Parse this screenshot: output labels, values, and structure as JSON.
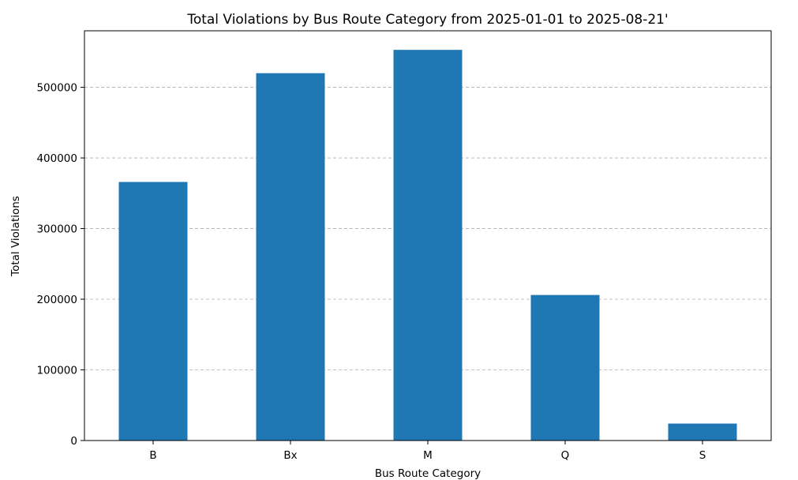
{
  "chart_data": {
    "type": "bar",
    "title": "Total Violations by Bus Route Category from 2025-01-01 to 2025-08-21'",
    "xlabel": "Bus Route Category",
    "ylabel": "Total Violations",
    "categories": [
      "B",
      "Bx",
      "M",
      "Q",
      "S"
    ],
    "values": [
      366000,
      520000,
      553000,
      206000,
      24000
    ],
    "ylim": [
      0,
      580000
    ],
    "yticks": [
      0,
      100000,
      200000,
      300000,
      400000,
      500000
    ],
    "ytick_labels": [
      "0",
      "100000",
      "200000",
      "300000",
      "400000",
      "500000"
    ],
    "grid": "y-dashed",
    "bar_color": "#1f77b4",
    "grid_color": "#b0b0b0"
  }
}
